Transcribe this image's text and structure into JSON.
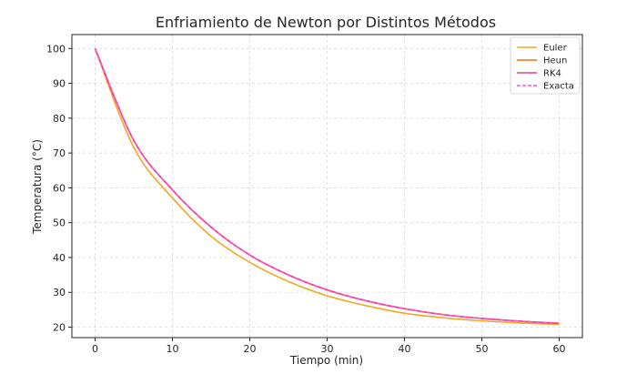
{
  "chart_data": {
    "type": "line",
    "title": "Enfriamiento de Newton por Distintos Métodos",
    "xlabel": "Tiempo (min)",
    "ylabel": "Temperatura (°C)",
    "xlim": [
      -3,
      63
    ],
    "ylim": [
      17,
      104
    ],
    "xticks": [
      0,
      10,
      20,
      30,
      40,
      50,
      60
    ],
    "yticks": [
      20,
      30,
      40,
      50,
      60,
      70,
      80,
      90,
      100
    ],
    "grid": true,
    "legend_position": "top-right",
    "x": [
      0,
      5,
      10,
      15,
      20,
      25,
      30,
      35,
      40,
      45,
      50,
      55,
      60
    ],
    "series": [
      {
        "name": "Euler",
        "color": "#f5a623",
        "dash": "solid",
        "values": [
          100,
          71.6,
          57.1,
          46.1,
          38.6,
          33.1,
          29.0,
          26.2,
          24.0,
          22.7,
          21.8,
          21.2,
          20.8
        ]
      },
      {
        "name": "Heun",
        "color": "#ff6a13",
        "dash": "solid",
        "values": [
          100,
          73.6,
          59.4,
          48.7,
          40.7,
          35.0,
          30.7,
          27.6,
          25.3,
          23.6,
          22.5,
          21.7,
          21.1
        ]
      },
      {
        "name": "RK4",
        "color": "#e8427a",
        "dash": "solid",
        "values": [
          100,
          73.6,
          59.4,
          48.7,
          40.7,
          35.0,
          30.7,
          27.6,
          25.3,
          23.6,
          22.5,
          21.7,
          21.1
        ]
      },
      {
        "name": "Exacta",
        "color": "#ff4fd8",
        "dash": "dashed",
        "values": [
          100,
          73.6,
          59.4,
          48.7,
          40.7,
          35.0,
          30.7,
          27.6,
          25.3,
          23.6,
          22.5,
          21.7,
          21.1
        ]
      }
    ]
  }
}
